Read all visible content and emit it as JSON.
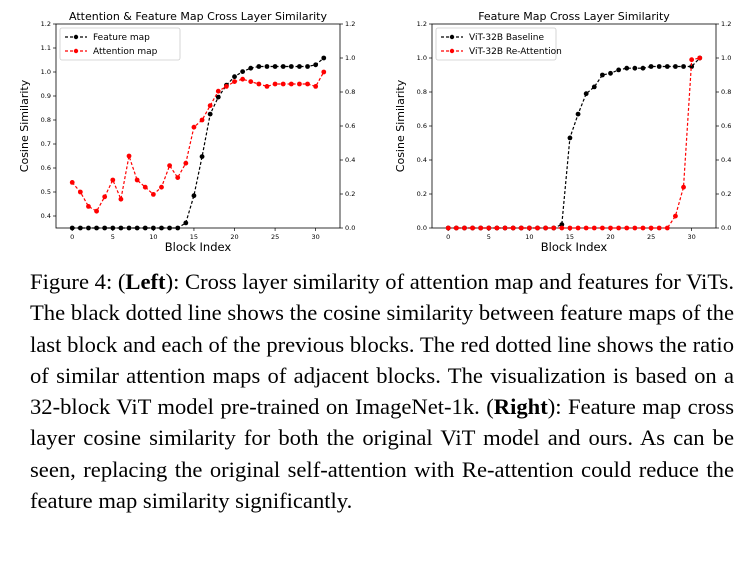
{
  "chart_data": [
    {
      "type": "line",
      "title": "Attention & Feature Map Cross Layer Similarity",
      "xlabel": "Block Index",
      "ylabel": "Cosine Similarity",
      "xlim": [
        -2,
        33
      ],
      "ylim": [
        0.35,
        1.2
      ],
      "y2lim": [
        0.0,
        1.2
      ],
      "xticks": [
        "0",
        "5",
        "10",
        "15",
        "20",
        "25",
        "30"
      ],
      "yticks": [
        "0.4",
        "0.5",
        "0.6",
        "0.7",
        "0.8",
        "0.9",
        "1.0",
        "1.1",
        "1.2"
      ],
      "y2ticks": [
        "0.0",
        "0.2",
        "0.4",
        "0.6",
        "0.8",
        "1.0",
        "1.2"
      ],
      "legend_position": "top-left",
      "series": [
        {
          "name": "Feature map",
          "axis": "right",
          "color": "#000000",
          "x": [
            0,
            1,
            2,
            3,
            4,
            5,
            6,
            7,
            8,
            9,
            10,
            11,
            12,
            13,
            14,
            15,
            16,
            17,
            18,
            19,
            20,
            21,
            22,
            23,
            24,
            25,
            26,
            27,
            28,
            29,
            30,
            31
          ],
          "values": [
            0.0,
            0.0,
            0.0,
            0.0,
            0.0,
            0.0,
            0.0,
            0.0,
            0.0,
            0.0,
            0.0,
            0.0,
            0.0,
            0.0,
            0.03,
            0.19,
            0.42,
            0.67,
            0.77,
            0.84,
            0.89,
            0.92,
            0.94,
            0.95,
            0.95,
            0.95,
            0.95,
            0.95,
            0.95,
            0.95,
            0.96,
            1.0
          ]
        },
        {
          "name": "Attention map",
          "axis": "left",
          "color": "#ff0000",
          "x": [
            0,
            1,
            2,
            3,
            4,
            5,
            6,
            7,
            8,
            9,
            10,
            11,
            12,
            13,
            14,
            15,
            16,
            17,
            18,
            19,
            20,
            21,
            22,
            23,
            24,
            25,
            26,
            27,
            28,
            29,
            30,
            31
          ],
          "values": [
            0.54,
            0.5,
            0.44,
            0.42,
            0.48,
            0.55,
            0.47,
            0.65,
            0.55,
            0.52,
            0.49,
            0.52,
            0.61,
            0.56,
            0.62,
            0.77,
            0.8,
            0.86,
            0.92,
            0.94,
            0.96,
            0.97,
            0.96,
            0.95,
            0.94,
            0.95,
            0.95,
            0.95,
            0.95,
            0.95,
            0.94,
            1.0
          ]
        }
      ]
    },
    {
      "type": "line",
      "title": "Feature Map Cross Layer Similarity",
      "xlabel": "Block Index",
      "ylabel": "Cosine Similarity",
      "xlim": [
        -2,
        33
      ],
      "ylim": [
        0.0,
        1.2
      ],
      "y2lim": [
        0.0,
        1.2
      ],
      "xticks": [
        "0",
        "5",
        "10",
        "15",
        "20",
        "25",
        "30"
      ],
      "yticks": [
        "0.0",
        "0.2",
        "0.4",
        "0.6",
        "0.8",
        "1.0",
        "1.2"
      ],
      "y2ticks": [
        "0.0",
        "0.2",
        "0.4",
        "0.6",
        "0.8",
        "1.0",
        "1.2"
      ],
      "legend_position": "top-left",
      "series": [
        {
          "name": "ViT-32B Baseline",
          "color": "#000000",
          "x": [
            0,
            1,
            2,
            3,
            4,
            5,
            6,
            7,
            8,
            9,
            10,
            11,
            12,
            13,
            14,
            15,
            16,
            17,
            18,
            19,
            20,
            21,
            22,
            23,
            24,
            25,
            26,
            27,
            28,
            29,
            30,
            31
          ],
          "values": [
            0.0,
            0.0,
            0.0,
            0.0,
            0.0,
            0.0,
            0.0,
            0.0,
            0.0,
            0.0,
            0.0,
            0.0,
            0.0,
            0.0,
            0.02,
            0.53,
            0.67,
            0.79,
            0.83,
            0.9,
            0.91,
            0.93,
            0.94,
            0.94,
            0.94,
            0.95,
            0.95,
            0.95,
            0.95,
            0.95,
            0.95,
            1.0
          ]
        },
        {
          "name": "ViT-32B Re-Attention",
          "color": "#ff0000",
          "x": [
            0,
            1,
            2,
            3,
            4,
            5,
            6,
            7,
            8,
            9,
            10,
            11,
            12,
            13,
            14,
            15,
            16,
            17,
            18,
            19,
            20,
            21,
            22,
            23,
            24,
            25,
            26,
            27,
            28,
            29,
            30,
            31
          ],
          "values": [
            0.0,
            0.0,
            0.0,
            0.0,
            0.0,
            0.0,
            0.0,
            0.0,
            0.0,
            0.0,
            0.0,
            0.0,
            0.0,
            0.0,
            0.0,
            0.0,
            0.0,
            0.0,
            0.0,
            0.0,
            0.0,
            0.0,
            0.0,
            0.0,
            0.0,
            0.0,
            0.0,
            0.0,
            0.07,
            0.24,
            0.99,
            1.0
          ]
        }
      ]
    }
  ],
  "caption": {
    "lead": "Figure 4: (",
    "left": "Left",
    "part1": "): Cross layer similarity of attention map and features for ViTs. The black dotted line shows the cosine similarity between feature maps of the last block and each of the previous blocks. The red dotted line shows the ratio of similar attention maps of adjacent blocks. The visualization is based on a 32-block ViT model pre-trained on ImageNet-1k. (",
    "right": "Right",
    "part2": "): Feature map cross layer cosine similarity for both the original ViT model and ours. As can be seen, replacing the original self-attention with Re-attention could reduce the feature map similarity significantly."
  }
}
